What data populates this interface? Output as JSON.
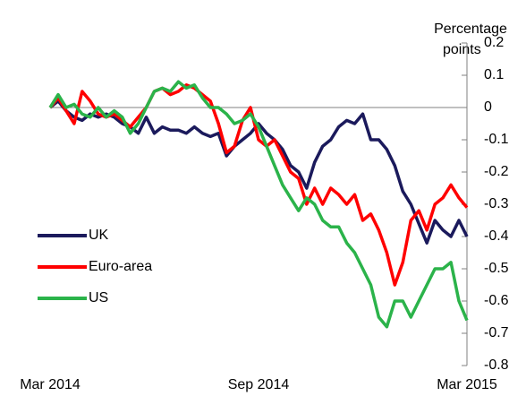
{
  "chart_data": {
    "type": "line",
    "ylabel_lines": [
      "Percentage",
      "points"
    ],
    "categories": [
      "Mar 2014",
      null,
      null,
      null,
      null,
      null,
      null,
      null,
      null,
      null,
      null,
      null,
      null,
      null,
      null,
      null,
      null,
      null,
      null,
      null,
      null,
      null,
      null,
      null,
      null,
      null,
      "Sep 2014",
      null,
      null,
      null,
      null,
      null,
      null,
      null,
      null,
      null,
      null,
      null,
      null,
      null,
      null,
      null,
      null,
      null,
      null,
      null,
      null,
      null,
      null,
      null,
      null,
      null,
      "Mar 2015"
    ],
    "series": [
      {
        "name": "UK",
        "color": "#1b1a5c",
        "values": [
          0,
          0.02,
          -0.01,
          -0.03,
          -0.04,
          -0.02,
          -0.03,
          -0.02,
          -0.03,
          -0.05,
          -0.06,
          -0.08,
          -0.03,
          -0.08,
          -0.06,
          -0.07,
          -0.07,
          -0.08,
          -0.06,
          -0.08,
          -0.09,
          -0.08,
          -0.15,
          -0.12,
          -0.1,
          -0.08,
          -0.05,
          -0.08,
          -0.1,
          -0.13,
          -0.18,
          -0.2,
          -0.25,
          -0.17,
          -0.12,
          -0.1,
          -0.06,
          -0.04,
          -0.05,
          -0.02,
          -0.1,
          -0.1,
          -0.13,
          -0.18,
          -0.26,
          -0.3,
          -0.36,
          -0.42,
          -0.35,
          -0.38,
          -0.4,
          -0.35,
          -0.4
        ]
      },
      {
        "name": "Euro-area",
        "color": "#ff0000",
        "values": [
          0,
          0.03,
          -0.01,
          -0.05,
          0.05,
          0.02,
          -0.02,
          -0.03,
          -0.02,
          -0.04,
          -0.06,
          -0.03,
          0.0,
          0.05,
          0.06,
          0.04,
          0.05,
          0.07,
          0.06,
          0.04,
          0.02,
          -0.05,
          -0.14,
          -0.12,
          -0.04,
          0.0,
          -0.1,
          -0.12,
          -0.1,
          -0.15,
          -0.2,
          -0.22,
          -0.3,
          -0.25,
          -0.3,
          -0.25,
          -0.27,
          -0.3,
          -0.27,
          -0.35,
          -0.33,
          -0.38,
          -0.45,
          -0.55,
          -0.48,
          -0.35,
          -0.32,
          -0.38,
          -0.3,
          -0.28,
          -0.24,
          -0.28,
          -0.31
        ]
      },
      {
        "name": "US",
        "color": "#2bb34a",
        "values": [
          0,
          0.04,
          0.0,
          0.01,
          -0.02,
          -0.03,
          0.0,
          -0.03,
          -0.01,
          -0.03,
          -0.08,
          -0.05,
          0.0,
          0.05,
          0.06,
          0.05,
          0.08,
          0.06,
          0.07,
          0.03,
          0.0,
          0.0,
          -0.02,
          -0.05,
          -0.04,
          -0.02,
          -0.06,
          -0.12,
          -0.18,
          -0.24,
          -0.28,
          -0.32,
          -0.28,
          -0.3,
          -0.35,
          -0.37,
          -0.37,
          -0.42,
          -0.45,
          -0.5,
          -0.55,
          -0.65,
          -0.68,
          -0.6,
          -0.6,
          -0.65,
          -0.6,
          -0.55,
          -0.5,
          -0.5,
          -0.48,
          -0.6,
          -0.66
        ]
      }
    ],
    "ylim": [
      -0.8,
      0.2
    ],
    "yticks": [
      0.2,
      0.1,
      0,
      -0.1,
      -0.2,
      -0.3,
      -0.4,
      -0.5,
      -0.6,
      -0.7,
      -0.8
    ],
    "y_axis_side": "right",
    "legend": "left"
  }
}
